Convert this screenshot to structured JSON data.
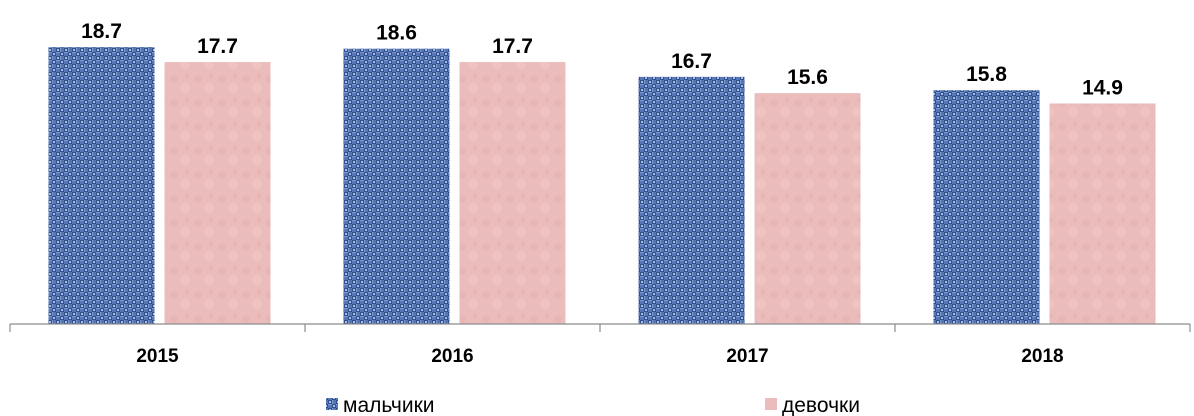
{
  "chart_data": {
    "type": "bar",
    "categories": [
      "2015",
      "2016",
      "2017",
      "2018"
    ],
    "series": [
      {
        "name": "мальчики",
        "values": [
          18.7,
          18.6,
          16.7,
          15.8
        ],
        "color": "#4a6fb0"
      },
      {
        "name": "девочки",
        "values": [
          17.7,
          17.7,
          15.6,
          14.9
        ],
        "color": "#e8b8b8"
      }
    ],
    "value_labels": [
      [
        "18.7",
        "18.6",
        "16.7",
        "15.8"
      ],
      [
        "17.7",
        "17.7",
        "15.6",
        "14.9"
      ]
    ],
    "ylim": [
      0,
      20
    ],
    "legend_position": "bottom",
    "grid": false
  }
}
